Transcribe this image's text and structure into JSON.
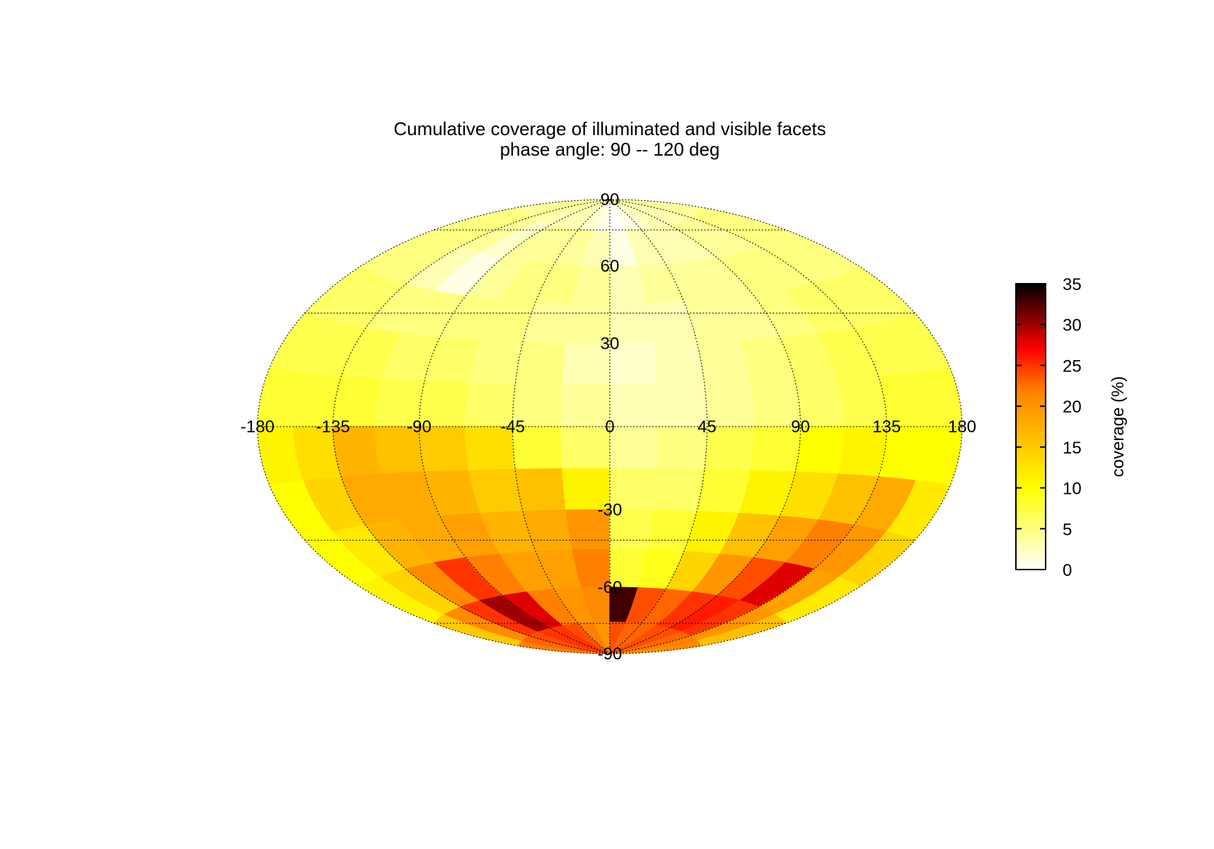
{
  "chart_data": {
    "type": "heatmap",
    "projection": "Hammer-Aitoff (full sphere)",
    "title": "Cumulative coverage of illuminated and visible facets",
    "subtitle": "phase angle:  90 -- 120 deg",
    "x_tick_labels": [
      "-180",
      "-135",
      "-90",
      "-45",
      "0",
      "45",
      "90",
      "135",
      "180"
    ],
    "x_tick_values": [
      -180,
      -135,
      -90,
      -45,
      0,
      45,
      90,
      135,
      180
    ],
    "y_tick_labels": [
      "90",
      "60",
      "30",
      "-30",
      "-60",
      "-90"
    ],
    "y_tick_values": [
      90,
      60,
      30,
      -30,
      -60,
      -90
    ],
    "xlim": [
      -180,
      180
    ],
    "ylim": [
      -90,
      90
    ],
    "grid": true,
    "colorbar": {
      "label": "coverage (%)",
      "range": [
        0,
        35
      ],
      "tick_labels": [
        "0",
        "5",
        "10",
        "15",
        "20",
        "25",
        "30",
        "35"
      ],
      "tick_values": [
        0,
        5,
        10,
        15,
        20,
        25,
        30,
        35
      ],
      "colormap": [
        {
          "value": 0,
          "color": "#ffffff"
        },
        {
          "value": 10,
          "color": "#ffff00"
        },
        {
          "value": 22,
          "color": "#ff8000"
        },
        {
          "value": 27,
          "color": "#ff0000"
        },
        {
          "value": 35,
          "color": "#000000"
        }
      ],
      "position": "right"
    },
    "cell_size_deg": [
      22.5,
      15
    ],
    "lat_bands": [
      82.5,
      67.5,
      52.5,
      37.5,
      22.5,
      7.5,
      -7.5,
      -22.5,
      -37.5,
      -52.5,
      -67.5,
      -82.5
    ],
    "lon_centers": [
      -168.75,
      -146.25,
      -123.75,
      -101.25,
      -78.75,
      -56.25,
      -33.75,
      -11.25,
      11.25,
      33.75,
      56.25,
      78.75,
      101.25,
      123.75,
      146.25,
      168.75
    ],
    "values": [
      [
        4,
        4,
        4,
        3,
        3,
        3,
        2,
        1,
        0,
        1,
        2,
        3,
        3,
        3,
        4,
        4
      ],
      [
        5,
        5,
        4,
        2,
        4,
        4,
        4,
        3,
        1,
        3,
        3,
        3,
        4,
        4,
        5,
        5
      ],
      [
        5,
        5,
        3,
        1,
        4,
        5,
        5,
        4,
        3,
        4,
        4,
        4,
        5,
        5,
        5,
        5
      ],
      [
        6,
        6,
        5,
        5,
        5,
        5,
        4,
        4,
        3,
        3,
        4,
        4,
        5,
        6,
        6,
        6
      ],
      [
        7,
        7,
        7,
        6,
        6,
        5,
        5,
        3,
        2,
        3,
        4,
        5,
        6,
        7,
        7,
        7
      ],
      [
        8,
        8,
        8,
        7,
        7,
        6,
        5,
        4,
        3,
        3,
        4,
        5,
        6,
        7,
        8,
        8
      ],
      [
        11,
        13,
        17,
        16,
        15,
        13,
        8,
        6,
        4,
        5,
        7,
        8,
        10,
        11,
        10,
        10
      ],
      [
        10,
        14,
        18,
        18,
        17,
        15,
        16,
        11,
        6,
        6,
        8,
        11,
        13,
        16,
        18,
        12
      ],
      [
        10,
        12,
        17,
        18,
        19,
        17,
        18,
        20,
        7,
        8,
        11,
        16,
        19,
        22,
        20,
        14
      ],
      [
        11,
        14,
        21,
        25,
        22,
        19,
        19,
        22,
        8,
        9,
        14,
        20,
        24,
        28,
        19,
        12
      ],
      [
        15,
        21,
        25,
        30,
        28,
        22,
        20,
        21,
        33,
        24,
        23,
        25,
        26,
        25,
        20,
        16
      ],
      [
        22,
        23,
        24,
        25,
        25,
        24,
        22,
        20,
        24,
        23,
        23,
        24,
        24,
        23,
        22,
        21
      ]
    ]
  }
}
